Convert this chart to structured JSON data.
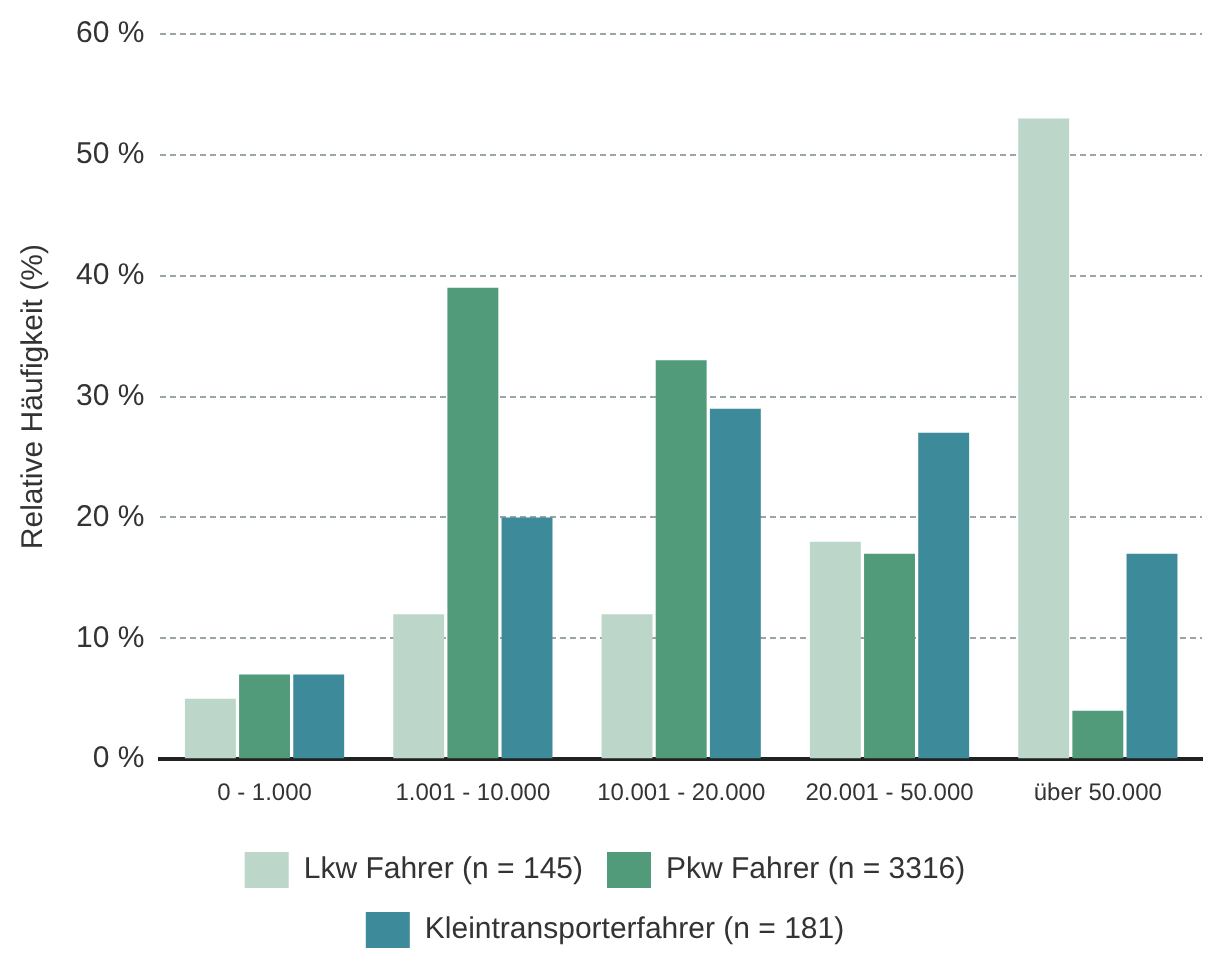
{
  "chart_data": {
    "type": "bar",
    "ylabel": "Relative Häufigkeit (%)",
    "categories": [
      "0 - 1.000",
      "1.001 - 10.000",
      "10.001 - 20.000",
      "20.001 - 50.000",
      "über 50.000"
    ],
    "series": [
      {
        "name": "Lkw Fahrer (n = 145)",
        "color": "#bcd7ca",
        "values": [
          5,
          12,
          12,
          18,
          53
        ]
      },
      {
        "name": "Pkw Fahrer (n = 3316)",
        "color": "#519a7a",
        "values": [
          7,
          39,
          33,
          17,
          4
        ]
      },
      {
        "name": "Kleintransporterfahrer (n = 181)",
        "color": "#3d8a9a",
        "values": [
          7,
          20,
          29,
          27,
          17
        ]
      }
    ],
    "ylim": [
      0,
      60
    ],
    "yticks": [
      {
        "value": 0,
        "label": "0 %"
      },
      {
        "value": 10,
        "label": "10 %"
      },
      {
        "value": 20,
        "label": "20 %"
      },
      {
        "value": 30,
        "label": "30 %"
      },
      {
        "value": 40,
        "label": "40 %"
      },
      {
        "value": 50,
        "label": "50 %"
      },
      {
        "value": 60,
        "label": "60 %"
      }
    ],
    "grid": "y",
    "legend": "bottom"
  }
}
